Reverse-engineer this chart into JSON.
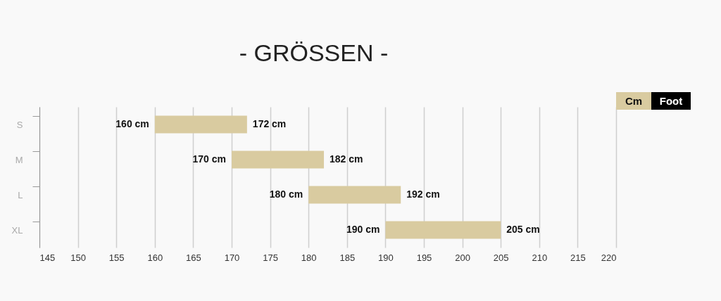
{
  "chart_data": {
    "type": "bar",
    "orientation": "horizontal",
    "title": "- GRÖSSEN -",
    "categories": [
      "S",
      "M",
      "L",
      "XL"
    ],
    "base": [
      160,
      170,
      180,
      190
    ],
    "values": [
      12,
      12,
      12,
      15
    ],
    "color": "#d9cba0",
    "xlim": [
      145,
      220
    ],
    "xticks": [
      145,
      150,
      155,
      160,
      165,
      170,
      175,
      180,
      185,
      190,
      195,
      200,
      205,
      210,
      215,
      220
    ],
    "grid": "x",
    "annotations": [
      {
        "text": "160 cm",
        "x": 160,
        "y": "S"
      },
      {
        "text": "172 cm",
        "x": 172,
        "y": "S"
      },
      {
        "text": "170 cm",
        "x": 170,
        "y": "M"
      },
      {
        "text": "182 cm",
        "x": 182,
        "y": "M"
      },
      {
        "text": "180 cm",
        "x": 180,
        "y": "L"
      },
      {
        "text": "192 cm",
        "x": 192,
        "y": "L"
      },
      {
        "text": "190 cm",
        "x": 190,
        "y": "XL"
      },
      {
        "text": "205 cm",
        "x": 205,
        "y": "XL"
      },
      "Cm",
      "Foot"
    ]
  }
}
